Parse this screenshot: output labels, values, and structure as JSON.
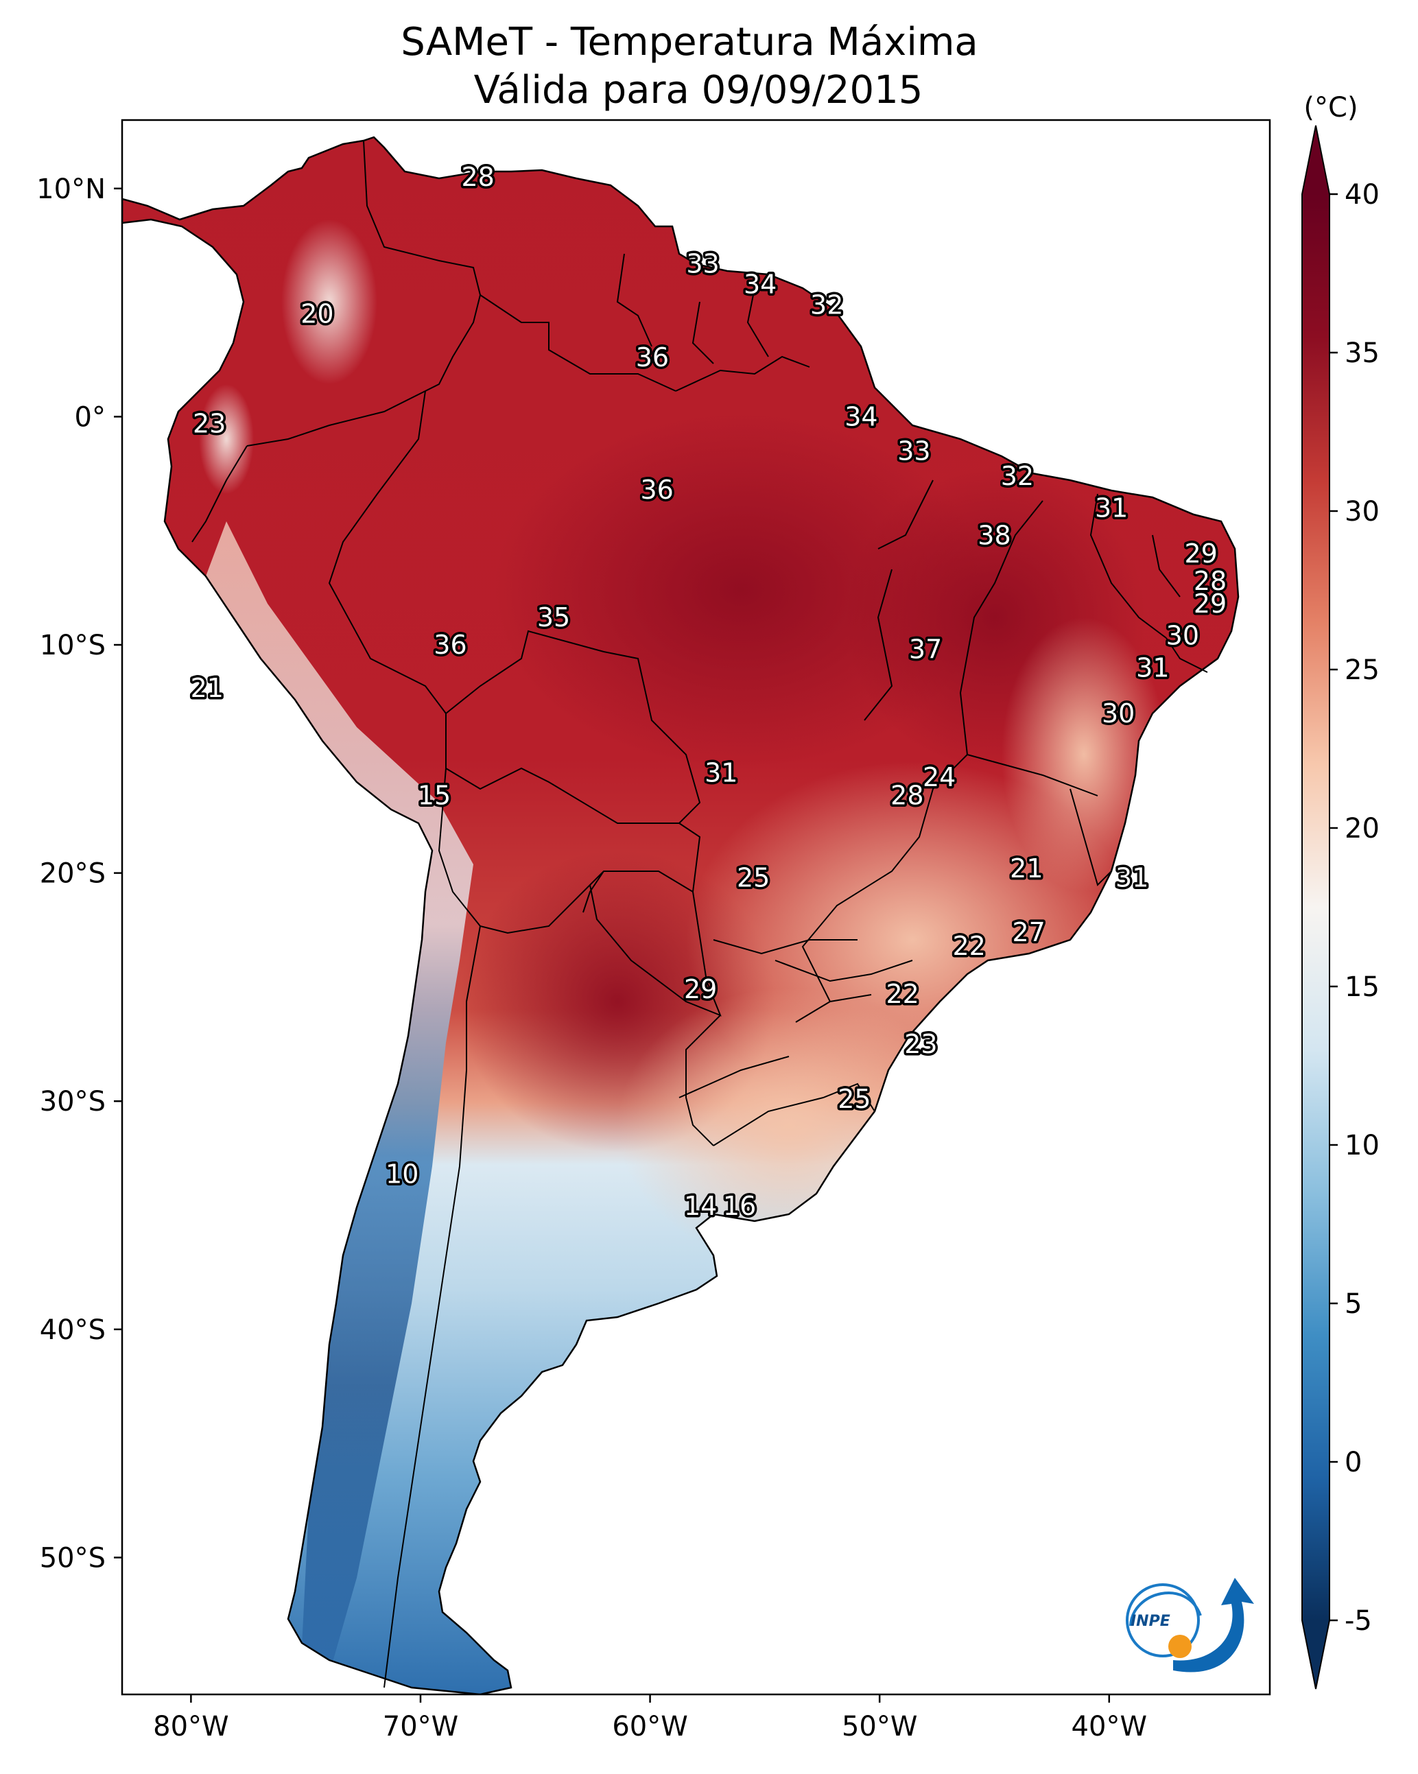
{
  "title": "SAMeT - Temperatura Máxima",
  "subtitle": "Válida para 09/09/2015",
  "colorbar": {
    "unit": "(°C)",
    "ticks": [
      40,
      35,
      30,
      25,
      20,
      15,
      10,
      5,
      0,
      -5
    ],
    "range": [
      -5,
      40
    ],
    "colors": [
      "#0a2f5c",
      "#1f63a6",
      "#3f8ec4",
      "#8bbfde",
      "#d4e6f1",
      "#f7f4f1",
      "#f7c8ad",
      "#e48166",
      "#c43b35",
      "#8c0d22",
      "#67001f"
    ]
  },
  "axes": {
    "lon_labels": [
      "80°W",
      "70°W",
      "60°W",
      "50°W",
      "40°W"
    ],
    "lat_labels": [
      "10°N",
      "0°",
      "10°S",
      "20°S",
      "30°S",
      "40°S",
      "50°S"
    ]
  },
  "logo": {
    "text": "INPE"
  },
  "chart_data": {
    "type": "heatmap",
    "title": "SAMeT - Temperatura Máxima",
    "subtitle": "Válida para 09/09/2015",
    "unit": "(°C)",
    "lon_range": [
      -83,
      -33
    ],
    "lat_range": [
      -56,
      13
    ],
    "lon_ticks": [
      -80,
      -70,
      -60,
      -50,
      -40
    ],
    "lat_ticks": [
      10,
      0,
      -10,
      -20,
      -30,
      -40,
      -50
    ],
    "value_labels": [
      {
        "lon": -67.5,
        "lat": 10.5,
        "value": "28"
      },
      {
        "lon": -74.5,
        "lat": 4.5,
        "value": "20"
      },
      {
        "lon": -79.2,
        "lat": -0.3,
        "value": "23"
      },
      {
        "lon": -57.7,
        "lat": 6.7,
        "value": "33"
      },
      {
        "lon": -55.2,
        "lat": 5.8,
        "value": "34"
      },
      {
        "lon": -52.3,
        "lat": 4.9,
        "value": "32"
      },
      {
        "lon": -59.9,
        "lat": 2.6,
        "value": "36"
      },
      {
        "lon": -50.8,
        "lat": 0.0,
        "value": "34"
      },
      {
        "lon": -48.5,
        "lat": -1.5,
        "value": "33"
      },
      {
        "lon": -44.0,
        "lat": -2.6,
        "value": "32"
      },
      {
        "lon": -39.9,
        "lat": -4.0,
        "value": "31"
      },
      {
        "lon": -59.7,
        "lat": -3.2,
        "value": "36"
      },
      {
        "lon": -45.0,
        "lat": -5.2,
        "value": "38"
      },
      {
        "lon": -36.0,
        "lat": -6.0,
        "value": "29"
      },
      {
        "lon": -35.6,
        "lat": -7.2,
        "value": "28"
      },
      {
        "lon": -35.6,
        "lat": -8.2,
        "value": "29"
      },
      {
        "lon": -36.8,
        "lat": -9.6,
        "value": "30"
      },
      {
        "lon": -38.1,
        "lat": -11.0,
        "value": "31"
      },
      {
        "lon": -39.6,
        "lat": -13.0,
        "value": "30"
      },
      {
        "lon": -64.2,
        "lat": -8.8,
        "value": "35"
      },
      {
        "lon": -68.7,
        "lat": -10.0,
        "value": "36"
      },
      {
        "lon": -48.0,
        "lat": -10.2,
        "value": "37"
      },
      {
        "lon": -79.3,
        "lat": -11.9,
        "value": "21"
      },
      {
        "lon": -56.9,
        "lat": -15.6,
        "value": "31"
      },
      {
        "lon": -47.4,
        "lat": -15.8,
        "value": "24"
      },
      {
        "lon": -48.8,
        "lat": -16.6,
        "value": "28"
      },
      {
        "lon": -69.4,
        "lat": -16.6,
        "value": "15"
      },
      {
        "lon": -55.5,
        "lat": -20.2,
        "value": "25"
      },
      {
        "lon": -43.6,
        "lat": -19.8,
        "value": "21"
      },
      {
        "lon": -39.0,
        "lat": -20.2,
        "value": "31"
      },
      {
        "lon": -43.5,
        "lat": -22.6,
        "value": "27"
      },
      {
        "lon": -46.1,
        "lat": -23.2,
        "value": "22"
      },
      {
        "lon": -49.0,
        "lat": -25.3,
        "value": "22"
      },
      {
        "lon": -57.8,
        "lat": -25.1,
        "value": "29"
      },
      {
        "lon": -48.2,
        "lat": -27.5,
        "value": "23"
      },
      {
        "lon": -51.1,
        "lat": -29.9,
        "value": "25"
      },
      {
        "lon": -70.8,
        "lat": -33.2,
        "value": "10"
      },
      {
        "lon": -57.8,
        "lat": -34.6,
        "value": "14"
      },
      {
        "lon": -56.1,
        "lat": -34.6,
        "value": "16"
      }
    ]
  }
}
